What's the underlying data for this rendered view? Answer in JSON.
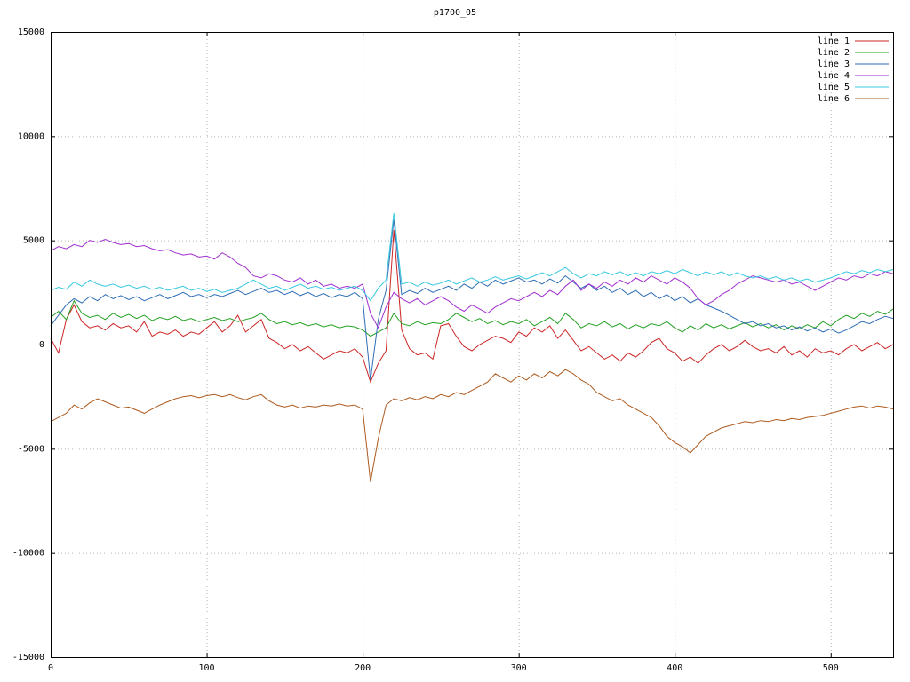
{
  "chart_data": {
    "type": "line",
    "title": "p1700_05",
    "xlabel": "",
    "ylabel": "",
    "xlim": [
      0,
      540
    ],
    "ylim": [
      -15000,
      15000
    ],
    "x_ticks": [
      0,
      100,
      200,
      300,
      400,
      500
    ],
    "y_ticks": [
      -15000,
      -10000,
      -5000,
      0,
      5000,
      10000,
      15000
    ],
    "grid": true,
    "grid_style": "dotted",
    "legend_position": "top-right-inside",
    "x_start": 0,
    "x_step": 5,
    "series": [
      {
        "name": "line 1",
        "color": "#cc2525",
        "values": [
          300,
          -400,
          1200,
          1900,
          1100,
          800,
          900,
          700,
          1000,
          800,
          900,
          600,
          1100,
          400,
          600,
          500,
          700,
          400,
          600,
          500,
          800,
          1100,
          600,
          900,
          1400,
          600,
          900,
          1200,
          300,
          100,
          -200,
          0,
          -300,
          -100,
          -400,
          -700,
          -500,
          -300,
          -400,
          -200,
          -600,
          -1800,
          -900,
          -300,
          5500,
          700,
          -200,
          -500,
          -400,
          -700,
          900,
          1000,
          400,
          -100,
          -300,
          0,
          200,
          400,
          300,
          100,
          600,
          400,
          800,
          600,
          900,
          300,
          700,
          200,
          -300,
          -100,
          -400,
          -700,
          -500,
          -800,
          -400,
          -600,
          -300,
          100,
          300,
          -200,
          -400,
          -800,
          -600,
          -900,
          -500,
          -200,
          0,
          -300,
          -100,
          200,
          -100,
          -300,
          -200,
          -400,
          -100,
          -500,
          -300,
          -600,
          -200,
          -400,
          -300,
          -500,
          -200,
          0,
          -300,
          -100,
          100,
          -200,
          0
        ]
      },
      {
        "name": "line 2",
        "color": "#23a123",
        "values": [
          1300,
          1600,
          1200,
          2100,
          1500,
          1300,
          1400,
          1200,
          1500,
          1300,
          1450,
          1250,
          1400,
          1150,
          1300,
          1200,
          1350,
          1150,
          1250,
          1100,
          1200,
          1300,
          1150,
          1250,
          1100,
          1200,
          1300,
          1500,
          1200,
          1000,
          1100,
          950,
          1050,
          900,
          1000,
          850,
          950,
          800,
          900,
          850,
          700,
          400,
          600,
          800,
          1500,
          1000,
          900,
          1100,
          950,
          1050,
          1000,
          1200,
          1500,
          1300,
          1100,
          1250,
          1000,
          1150,
          950,
          1100,
          1000,
          1200,
          900,
          1100,
          1300,
          1000,
          1500,
          1200,
          800,
          1000,
          900,
          1100,
          850,
          1000,
          750,
          950,
          800,
          1000,
          900,
          1100,
          800,
          600,
          900,
          700,
          1000,
          800,
          950,
          750,
          900,
          1050,
          850,
          1000,
          800,
          950,
          700,
          900,
          750,
          950,
          800,
          1100,
          900,
          1200,
          1400,
          1250,
          1500,
          1350,
          1600,
          1450,
          1700
        ]
      },
      {
        "name": "line 3",
        "color": "#2f6eb5",
        "values": [
          900,
          1400,
          1900,
          2200,
          2000,
          2300,
          2100,
          2400,
          2200,
          2350,
          2150,
          2300,
          2100,
          2250,
          2400,
          2200,
          2350,
          2500,
          2300,
          2400,
          2250,
          2400,
          2300,
          2450,
          2600,
          2400,
          2550,
          2700,
          2500,
          2600,
          2400,
          2550,
          2350,
          2500,
          2300,
          2450,
          2250,
          2400,
          2300,
          2500,
          2200,
          -1700,
          1200,
          2600,
          6000,
          2400,
          2600,
          2450,
          2700,
          2500,
          2650,
          2800,
          2600,
          2900,
          2700,
          3000,
          2800,
          3100,
          2900,
          3050,
          3200,
          3000,
          3100,
          2900,
          3150,
          2950,
          3300,
          3000,
          2700,
          2900,
          2600,
          2800,
          2500,
          2700,
          2400,
          2600,
          2300,
          2500,
          2200,
          2400,
          2100,
          2300,
          2000,
          2200,
          1900,
          1750,
          1600,
          1400,
          1200,
          1000,
          1100,
          900,
          1000,
          800,
          900,
          700,
          850,
          650,
          800,
          600,
          750,
          550,
          700,
          900,
          1100,
          1000,
          1200,
          1350,
          1250
        ]
      },
      {
        "name": "line 4",
        "color": "#a12fd0",
        "values": [
          4500,
          4700,
          4600,
          4800,
          4700,
          5000,
          4900,
          5050,
          4900,
          4800,
          4850,
          4700,
          4750,
          4600,
          4500,
          4550,
          4400,
          4300,
          4350,
          4200,
          4250,
          4100,
          4400,
          4200,
          3900,
          3700,
          3300,
          3200,
          3400,
          3300,
          3100,
          3000,
          3200,
          2900,
          3100,
          2800,
          2900,
          2700,
          2800,
          2700,
          2900,
          1500,
          800,
          1800,
          2500,
          2200,
          2000,
          2200,
          1900,
          2100,
          2300,
          2100,
          1800,
          1600,
          1900,
          1700,
          1500,
          1800,
          2000,
          2200,
          2100,
          2300,
          2500,
          2300,
          2600,
          2400,
          2800,
          3100,
          2600,
          2900,
          2700,
          3000,
          2800,
          3100,
          2900,
          3200,
          3000,
          3300,
          3100,
          2900,
          3200,
          3000,
          2700,
          2200,
          1900,
          2100,
          2400,
          2600,
          2900,
          3100,
          3300,
          3200,
          3100,
          3000,
          3100,
          2900,
          3000,
          2800,
          2600,
          2800,
          3000,
          3200,
          3100,
          3300,
          3200,
          3400,
          3300,
          3500,
          3400
        ]
      },
      {
        "name": "line 5",
        "color": "#37c8e0",
        "values": [
          2600,
          2750,
          2650,
          3000,
          2800,
          3100,
          2900,
          2800,
          2900,
          2750,
          2850,
          2700,
          2800,
          2650,
          2750,
          2600,
          2700,
          2800,
          2600,
          2700,
          2550,
          2650,
          2500,
          2600,
          2700,
          2900,
          3100,
          2900,
          2700,
          2800,
          2600,
          2750,
          2900,
          2700,
          2800,
          2650,
          2750,
          2600,
          2700,
          2800,
          2600,
          2100,
          2700,
          3100,
          6300,
          2900,
          3000,
          2800,
          3000,
          2850,
          2950,
          3100,
          2900,
          3050,
          3200,
          3000,
          3100,
          3250,
          3100,
          3200,
          3300,
          3150,
          3300,
          3450,
          3300,
          3500,
          3700,
          3400,
          3200,
          3400,
          3300,
          3500,
          3350,
          3500,
          3300,
          3450,
          3300,
          3500,
          3400,
          3550,
          3400,
          3600,
          3450,
          3300,
          3500,
          3350,
          3500,
          3300,
          3450,
          3300,
          3200,
          3300,
          3150,
          3250,
          3100,
          3200,
          3050,
          3150,
          3000,
          3100,
          3200,
          3350,
          3500,
          3400,
          3550,
          3450,
          3600,
          3500,
          3600
        ]
      },
      {
        "name": "line 6",
        "color": "#ad5a1e",
        "values": [
          -3700,
          -3500,
          -3300,
          -2900,
          -3100,
          -2800,
          -2600,
          -2750,
          -2900,
          -3050,
          -3000,
          -3150,
          -3300,
          -3100,
          -2900,
          -2750,
          -2600,
          -2500,
          -2450,
          -2550,
          -2450,
          -2400,
          -2500,
          -2400,
          -2550,
          -2650,
          -2500,
          -2400,
          -2700,
          -2900,
          -3000,
          -2900,
          -3050,
          -2950,
          -3000,
          -2900,
          -2950,
          -2850,
          -2950,
          -2900,
          -3100,
          -6600,
          -4500,
          -2900,
          -2600,
          -2700,
          -2550,
          -2650,
          -2500,
          -2600,
          -2400,
          -2500,
          -2300,
          -2400,
          -2200,
          -2000,
          -1800,
          -1400,
          -1600,
          -1800,
          -1500,
          -1700,
          -1400,
          -1600,
          -1300,
          -1500,
          -1200,
          -1400,
          -1700,
          -1900,
          -2300,
          -2500,
          -2700,
          -2600,
          -2900,
          -3100,
          -3300,
          -3500,
          -3900,
          -4400,
          -4700,
          -4900,
          -5200,
          -4800,
          -4400,
          -4200,
          -4000,
          -3900,
          -3800,
          -3700,
          -3750,
          -3650,
          -3700,
          -3600,
          -3650,
          -3550,
          -3600,
          -3500,
          -3450,
          -3400,
          -3300,
          -3200,
          -3100,
          -3000,
          -2950,
          -3050,
          -2950,
          -3000,
          -3100
        ]
      }
    ]
  },
  "styles": {
    "grid_color": "#b3b3b3",
    "border_color": "#000000",
    "background": "#ffffff"
  }
}
